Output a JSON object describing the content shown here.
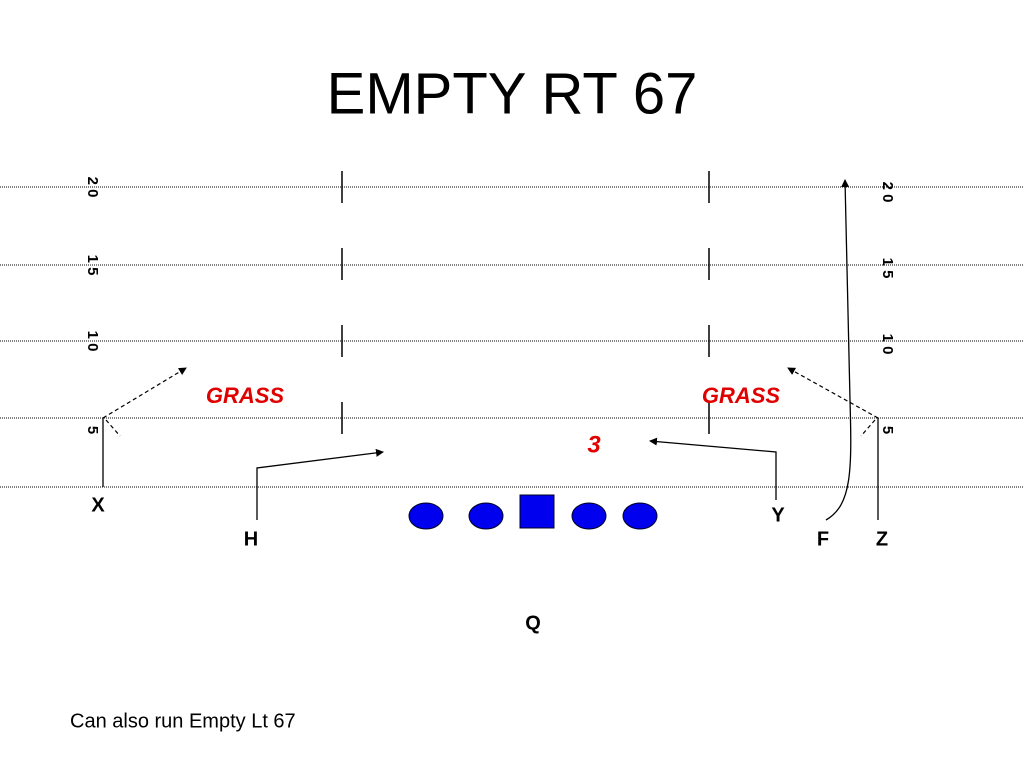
{
  "title": "EMPTY RT 67",
  "yard_labels": {
    "left": [
      "2 0",
      "1 5",
      "1 0",
      "5"
    ],
    "right": [
      "2 0",
      "1 5",
      "1 0",
      "5"
    ]
  },
  "annotations": {
    "grass_left": "GRASS",
    "grass_right": "GRASS",
    "hole": "3"
  },
  "players": {
    "x": "X",
    "h": "H",
    "y": "Y",
    "f": "F",
    "z": "Z",
    "q": "Q"
  },
  "footer": "Can also run Empty Lt 67"
}
